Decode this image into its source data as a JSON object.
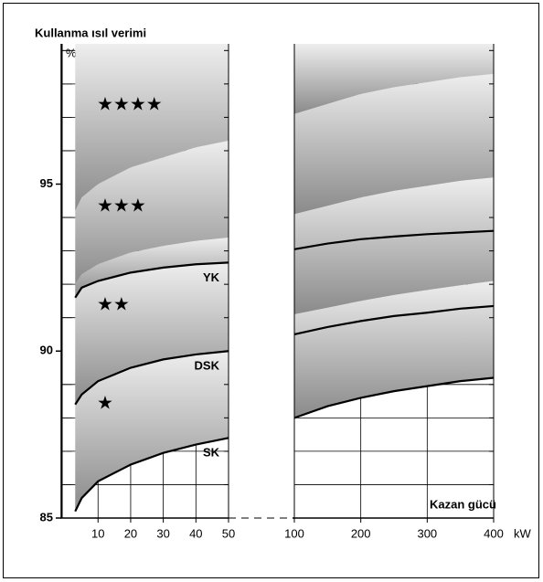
{
  "chart_data": [
    {
      "type": "line",
      "title": "Kullanma ısıl verimi",
      "ylabel": "%",
      "ylim": [
        85,
        99.2
      ],
      "yticks": [
        85,
        90,
        95
      ],
      "yminorticks": [
        86,
        87,
        88,
        89,
        91,
        92,
        93,
        94,
        96,
        97,
        98,
        99
      ],
      "xlim": [
        -1,
        50
      ],
      "xticks": [
        10,
        20,
        30,
        40,
        50
      ],
      "grid": true,
      "x": [
        3,
        5,
        10,
        20,
        30,
        40,
        50
      ],
      "series": [
        {
          "name": "SK",
          "color": "#000000",
          "values": [
            85.2,
            85.6,
            86.1,
            86.6,
            86.95,
            87.2,
            87.4
          ]
        },
        {
          "name": "DSK",
          "color": "#000000",
          "values": [
            88.4,
            88.7,
            89.1,
            89.5,
            89.75,
            89.9,
            90.0
          ]
        },
        {
          "name": "YK",
          "color": "#000000",
          "values": [
            91.6,
            91.9,
            92.1,
            92.35,
            92.5,
            92.6,
            92.65
          ]
        }
      ],
      "bands": [
        [
          92.0,
          92.3,
          92.6,
          92.95,
          93.15,
          93.3,
          93.4
        ],
        [
          94.2,
          94.6,
          95.0,
          95.5,
          95.8,
          96.1,
          96.3
        ]
      ],
      "annotations": [
        "★★★★",
        "★★★",
        "★★",
        "★"
      ]
    },
    {
      "type": "line",
      "xlabel": "Kazan gücü",
      "xunit": "kW",
      "ylim": [
        85,
        99.2
      ],
      "xlim": [
        100,
        400
      ],
      "xticks": [
        100,
        200,
        300,
        400
      ],
      "grid": true,
      "x": [
        100,
        150,
        200,
        250,
        300,
        350,
        400
      ],
      "series": [
        {
          "color": "#000000",
          "values": [
            88.0,
            88.35,
            88.6,
            88.8,
            88.95,
            89.1,
            89.2
          ]
        },
        {
          "color": "#000000",
          "values": [
            90.5,
            90.72,
            90.9,
            91.05,
            91.15,
            91.27,
            91.35
          ]
        },
        {
          "color": "#000000",
          "values": [
            93.05,
            93.22,
            93.35,
            93.43,
            93.5,
            93.55,
            93.6
          ]
        }
      ],
      "bands": [
        [
          91.1,
          91.3,
          91.5,
          91.68,
          91.83,
          91.97,
          92.1
        ],
        [
          94.1,
          94.35,
          94.6,
          94.8,
          94.95,
          95.1,
          95.2
        ],
        [
          97.1,
          97.4,
          97.7,
          97.9,
          98.05,
          98.2,
          98.3
        ]
      ]
    }
  ]
}
